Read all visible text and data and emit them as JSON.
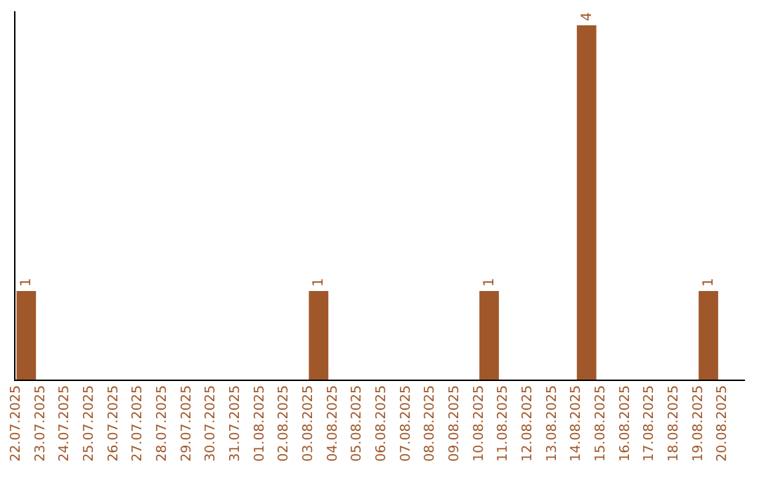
{
  "chart_data": {
    "type": "bar",
    "relative": false,
    "categories": [
      "22.07.2025",
      "23.07.2025",
      "24.07.2025",
      "25.07.2025",
      "26.07.2025",
      "27.07.2025",
      "28.07.2025",
      "29.07.2025",
      "30.07.2025",
      "31.07.2025",
      "01.08.2025",
      "02.08.2025",
      "03.08.2025",
      "04.08.2025",
      "05.08.2025",
      "06.08.2025",
      "07.08.2025",
      "08.08.2025",
      "09.08.2025",
      "10.08.2025",
      "11.08.2025",
      "12.08.2025",
      "13.08.2025",
      "14.08.2025",
      "15.08.2025",
      "16.08.2025",
      "17.08.2025",
      "18.08.2025",
      "19.08.2025",
      "20.08.2025"
    ],
    "values": [
      1,
      0,
      0,
      0,
      0,
      0,
      0,
      0,
      0,
      0,
      0,
      0,
      1,
      0,
      0,
      0,
      0,
      0,
      0,
      1,
      0,
      0,
      0,
      4,
      0,
      0,
      0,
      0,
      1,
      0
    ],
    "value_labels": [
      "1",
      null,
      null,
      null,
      null,
      null,
      null,
      null,
      null,
      null,
      null,
      null,
      "1",
      null,
      null,
      null,
      null,
      null,
      null,
      "1",
      null,
      null,
      null,
      "4",
      null,
      null,
      null,
      null,
      "1",
      null
    ],
    "color": "#a0582a"
  }
}
